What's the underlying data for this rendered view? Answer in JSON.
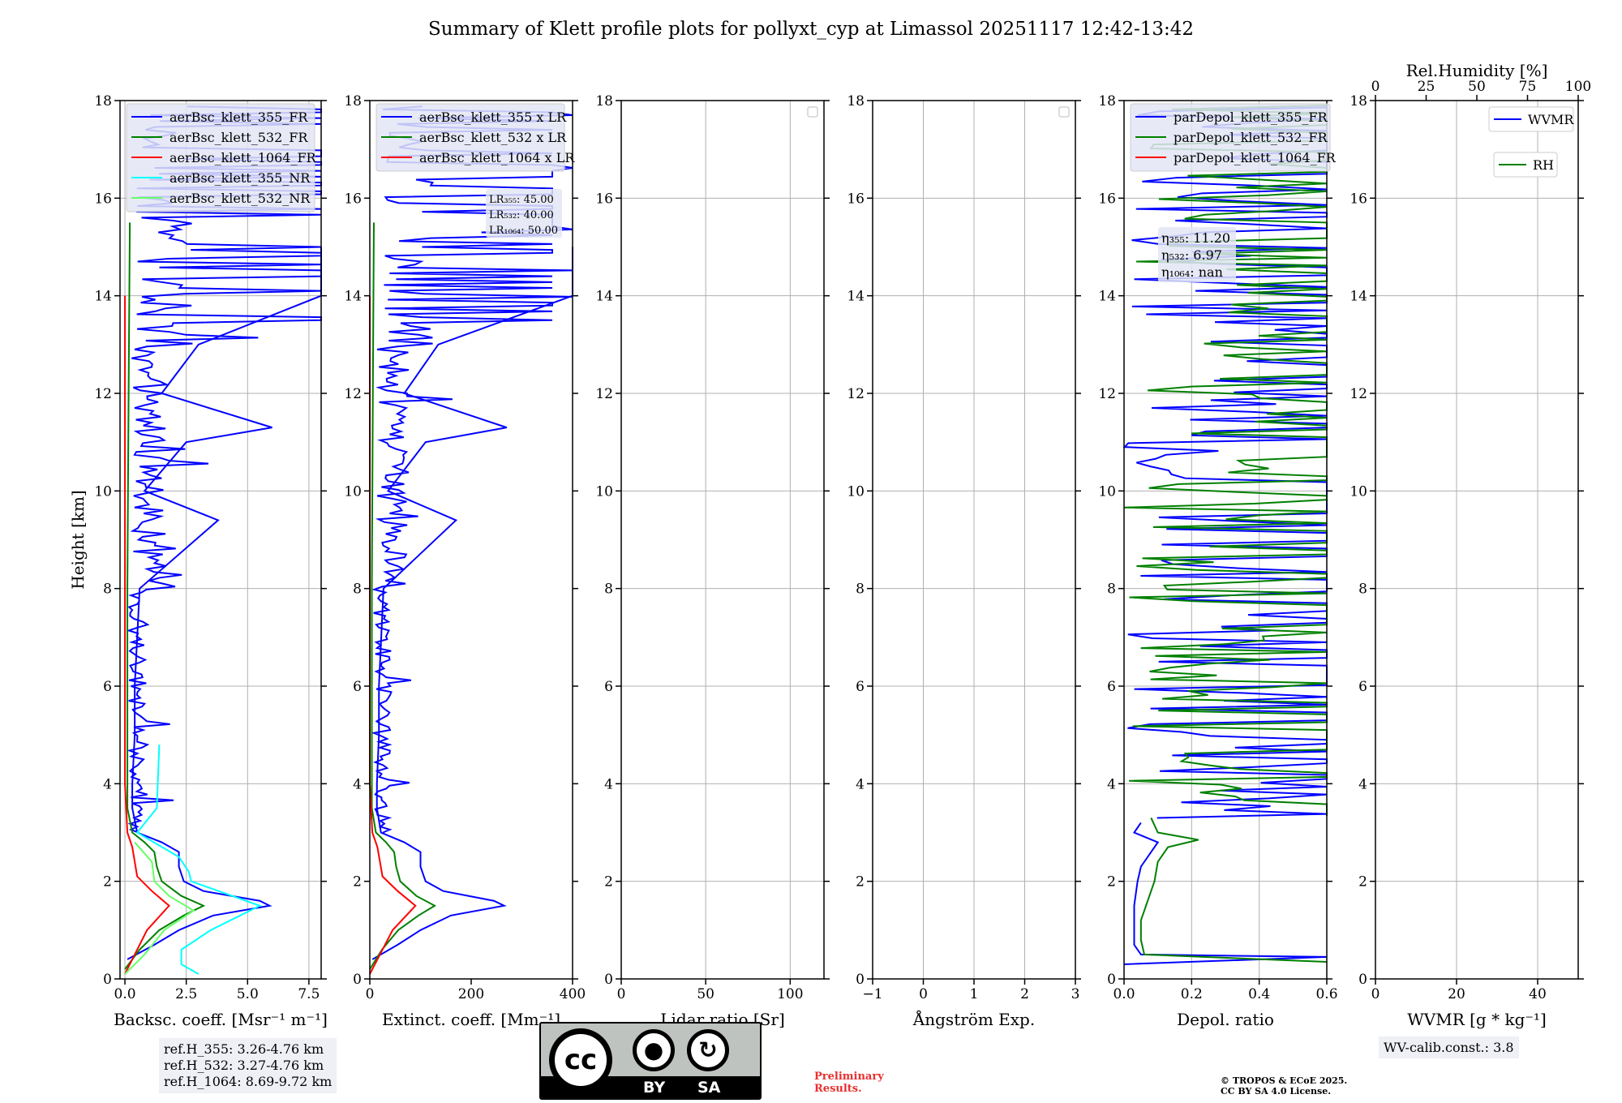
{
  "title": "Summary of Klett profile plots for pollyxt_cyp at Limassol 20251117 12:42-13:42",
  "colors": {
    "c355": "#0000ff",
    "c532": "#008000",
    "c1064": "#ff0000",
    "c355nr": "#00ffff",
    "c532nr": "#66ff66"
  },
  "chart_data": [
    {
      "type": "line",
      "xlabel": "Backsc. coeff. [Msr⁻¹ m⁻¹]",
      "ylabel": "Height [km]",
      "xlim": [
        -0.2,
        8.0
      ],
      "ylim": [
        0,
        18
      ],
      "xticks": [
        0,
        2.5,
        5.0,
        7.5
      ],
      "xtick_labels": [
        "0.0",
        "2.5",
        "5.0",
        "7.5"
      ],
      "yticks": [
        0,
        2,
        4,
        6,
        8,
        10,
        12,
        14,
        16,
        18
      ],
      "grid": true,
      "legend_position": "top-left",
      "legend": [
        "aerBsc_klett_355_FR",
        "aerBsc_klett_532_FR",
        "aerBsc_klett_1064_FR",
        "aerBsc_klett_355_NR",
        "aerBsc_klett_532_NR"
      ],
      "series": [
        {
          "name": "aerBsc_klett_355_FR",
          "color": "#0000ff",
          "y": [
            0.4,
            0.7,
            1.0,
            1.3,
            1.5,
            1.6,
            1.8,
            2.0,
            2.3,
            2.6,
            2.8,
            3.0,
            3.5,
            4.0,
            5.0,
            6.0,
            8.0,
            9.4,
            10.0,
            11.0,
            11.3,
            12.0,
            13.0,
            14.0,
            15.0
          ],
          "x": [
            0.1,
            1.2,
            2.2,
            3.6,
            5.9,
            5.5,
            3.2,
            2.4,
            2.2,
            2.2,
            1.5,
            0.5,
            0.3,
            0.3,
            0.4,
            0.4,
            0.6,
            3.8,
            0.8,
            2.5,
            6.0,
            1.5,
            3.0,
            8.0,
            8.0
          ]
        },
        {
          "name": "aerBsc_klett_532_FR",
          "color": "#008000",
          "y": [
            0.2,
            0.6,
            1.0,
            1.3,
            1.5,
            1.7,
            2.0,
            2.3,
            2.6,
            2.8,
            3.0,
            3.5,
            5.0,
            8.0,
            12.0,
            15.5
          ],
          "x": [
            0.0,
            0.6,
            1.4,
            2.4,
            3.2,
            2.3,
            1.5,
            1.3,
            1.2,
            0.8,
            0.3,
            0.1,
            0.1,
            0.1,
            0.15,
            0.2
          ]
        },
        {
          "name": "aerBsc_klett_1064_FR",
          "color": "#ff0000",
          "y": [
            0.1,
            0.5,
            1.0,
            1.5,
            1.8,
            2.1,
            2.4,
            2.7,
            3.0,
            4.0,
            8.0,
            14.0
          ],
          "x": [
            0.0,
            0.4,
            0.9,
            1.8,
            1.1,
            0.5,
            0.4,
            0.3,
            0.1,
            0.0,
            0.0,
            0.0
          ]
        },
        {
          "name": "aerBsc_klett_355_NR",
          "color": "#00ffff",
          "y": [
            0.1,
            0.3,
            0.6,
            1.0,
            1.5,
            2.0,
            2.2,
            2.5,
            3.0,
            3.5,
            4.8
          ],
          "x": [
            3.0,
            2.3,
            2.3,
            3.5,
            5.5,
            2.7,
            2.6,
            2.2,
            0.5,
            1.3,
            1.4
          ]
        },
        {
          "name": "aerBsc_klett_532_NR",
          "color": "#66ff66",
          "y": [
            0.1,
            0.5,
            1.0,
            1.4,
            1.7,
            2.0,
            2.4,
            2.8
          ],
          "x": [
            0.0,
            0.8,
            1.6,
            2.8,
            1.8,
            1.2,
            1.1,
            0.4
          ]
        }
      ],
      "annotation": [
        "ref.H_355: 3.26-4.76 km",
        "ref.H_532: 3.27-4.76 km",
        "ref.H_1064: 8.69-9.72 km"
      ]
    },
    {
      "type": "line",
      "xlabel": "Extinct. coeff. [Mm⁻¹]",
      "xlim": [
        0,
        400
      ],
      "ylim": [
        0,
        18
      ],
      "xticks": [
        0,
        200,
        400
      ],
      "xtick_labels": [
        "0",
        "200",
        "400"
      ],
      "yticks": [
        0,
        2,
        4,
        6,
        8,
        10,
        12,
        14,
        16,
        18
      ],
      "grid": false,
      "legend_position": "top-left",
      "legend": [
        "aerBsc_klett_355 x LR",
        "aerBsc_klett_532 x LR",
        "aerBsc_klett_1064 x LR"
      ],
      "series": [
        {
          "name": "aerBsc_klett_355 x LR",
          "color": "#0000ff",
          "y": [
            0.4,
            0.7,
            1.0,
            1.3,
            1.5,
            1.6,
            1.8,
            2.0,
            2.3,
            2.6,
            2.8,
            3.0,
            3.5,
            4.0,
            5.0,
            6.0,
            8.0,
            9.4,
            10.0,
            11.0,
            11.3,
            12.0,
            13.0,
            14.0,
            15.0
          ],
          "x": [
            5,
            55,
            100,
            160,
            265,
            245,
            145,
            110,
            100,
            100,
            68,
            22,
            14,
            14,
            18,
            18,
            27,
            170,
            36,
            110,
            270,
            68,
            135,
            400,
            400
          ]
        },
        {
          "name": "aerBsc_klett_532 x LR",
          "color": "#008000",
          "y": [
            0.2,
            0.6,
            1.0,
            1.3,
            1.5,
            1.7,
            2.0,
            2.3,
            2.6,
            2.8,
            3.0,
            3.5,
            5.0,
            8.0,
            12.0,
            15.5
          ],
          "x": [
            0,
            24,
            56,
            96,
            128,
            92,
            60,
            52,
            48,
            32,
            12,
            4,
            4,
            4,
            6,
            8
          ]
        },
        {
          "name": "aerBsc_klett_1064 x LR",
          "color": "#ff0000",
          "y": [
            0.1,
            0.5,
            1.0,
            1.5,
            1.8,
            2.1,
            2.4,
            2.7,
            3.0,
            4.0,
            8.0,
            14.0
          ],
          "x": [
            0,
            20,
            45,
            90,
            55,
            25,
            20,
            15,
            5,
            0,
            0,
            0
          ]
        }
      ],
      "lr_labels": [
        "LR₃₅₅: 45.00",
        "LR₅₃₂: 40.00",
        "LR₁₀₆₄: 50.00"
      ]
    },
    {
      "type": "line",
      "xlabel": "Lidar ratio [Sr]",
      "xlim": [
        0,
        120
      ],
      "ylim": [
        0,
        18
      ],
      "xticks": [
        0,
        50,
        100
      ],
      "xtick_labels": [
        "0",
        "50",
        "100"
      ],
      "yticks": [
        0,
        2,
        4,
        6,
        8,
        10,
        12,
        14,
        16,
        18
      ],
      "grid": true,
      "legend_position": "top-right",
      "series": []
    },
    {
      "type": "line",
      "xlabel": "Ångström Exp.",
      "xlim": [
        -1,
        3
      ],
      "ylim": [
        0,
        18
      ],
      "xticks": [
        -1,
        0,
        1,
        2,
        3
      ],
      "xtick_labels": [
        "−1",
        "0",
        "1",
        "2",
        "3"
      ],
      "yticks": [
        0,
        2,
        4,
        6,
        8,
        10,
        12,
        14,
        16,
        18
      ],
      "grid": true,
      "legend_position": "top-right",
      "series": []
    },
    {
      "type": "line",
      "xlabel": "Depol. ratio",
      "xlim": [
        0,
        0.6
      ],
      "ylim": [
        0,
        18
      ],
      "xticks": [
        0,
        0.2,
        0.4,
        0.6
      ],
      "xtick_labels": [
        "0.0",
        "0.2",
        "0.4",
        "0.6"
      ],
      "yticks": [
        0,
        2,
        4,
        6,
        8,
        10,
        12,
        14,
        16,
        18
      ],
      "grid": true,
      "legend_position": "top-left",
      "legend": [
        "parDepol_klett_355_FR",
        "parDepol_klett_532_FR",
        "parDepol_klett_1064_FR"
      ],
      "series": [
        {
          "name": "parDepol_klett_355_FR",
          "color": "#0000ff",
          "y": [
            0.3,
            0.45,
            0.5,
            0.7,
            1.0,
            1.5,
            2.0,
            2.3,
            2.6,
            2.8,
            3.0,
            3.2
          ],
          "x": [
            0.0,
            0.6,
            0.05,
            0.03,
            0.03,
            0.03,
            0.04,
            0.05,
            0.08,
            0.1,
            0.03,
            0.05
          ]
        },
        {
          "name": "parDepol_klett_532_FR",
          "color": "#008000",
          "y": [
            0.35,
            0.5,
            0.8,
            1.2,
            1.6,
            2.0,
            2.4,
            2.7,
            2.85,
            3.0,
            3.3
          ],
          "x": [
            0.6,
            0.06,
            0.05,
            0.05,
            0.07,
            0.09,
            0.1,
            0.13,
            0.22,
            0.1,
            0.08
          ]
        }
      ],
      "eta_labels": [
        "η₃₅₅: 11.20",
        "η₅₃₂: 6.97",
        "η₁₀₆₄: nan"
      ]
    },
    {
      "type": "line",
      "xlabel": "WVMR [g * kg⁻¹]",
      "xlim": [
        0,
        50
      ],
      "ylim": [
        0,
        18
      ],
      "xticks": [
        0,
        20,
        40
      ],
      "xtick_labels": [
        "0",
        "20",
        "40"
      ],
      "yticks": [
        0,
        2,
        4,
        6,
        8,
        10,
        12,
        14,
        16,
        18
      ],
      "secondary_xlabel": "Rel.Humidity [%]",
      "secondary_xlim": [
        0,
        100
      ],
      "secondary_xticks": [
        0,
        25,
        50,
        75,
        100
      ],
      "secondary_xtick_labels": [
        "0",
        "25",
        "50",
        "75",
        "100"
      ],
      "grid": true,
      "legend": [
        "WVMR",
        "RH"
      ],
      "legend_position": "top-right",
      "series": [],
      "annotation": "WV-calib.const.: 3.8"
    }
  ],
  "footer": {
    "license_badge": {
      "cc": "cc",
      "by": "BY",
      "sa": "SA"
    },
    "preliminary": [
      "Preliminary",
      "Results."
    ],
    "copyright": [
      "© TROPOS & ECoE 2025.",
      "CC BY SA 4.0 License."
    ]
  }
}
